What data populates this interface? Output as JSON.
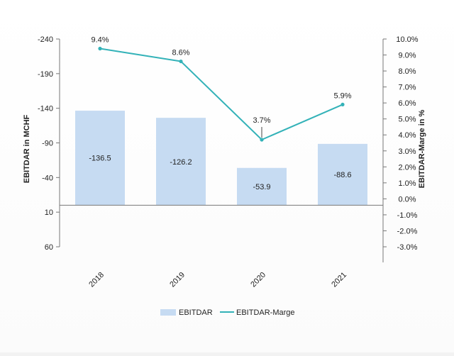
{
  "chart_data": {
    "type": "bar",
    "categories": [
      "2018",
      "2019",
      "2020",
      "2021"
    ],
    "series": [
      {
        "name": "EBITDAR",
        "type": "bar",
        "axis": "left",
        "values": [
          -136.5,
          -126.2,
          -53.9,
          -88.6
        ],
        "value_labels": [
          "-136.5",
          "-126.2",
          "-53.9",
          "-88.6"
        ],
        "color": "#c6dbf2"
      },
      {
        "name": "EBITDAR-Marge",
        "type": "line",
        "axis": "right",
        "values": [
          9.4,
          8.6,
          3.7,
          5.9
        ],
        "value_labels": [
          "9.4%",
          "8.6%",
          "3.7%",
          "5.9%"
        ],
        "color": "#33b2b8"
      }
    ],
    "ylabel": "EBITDAR in MCHF",
    "y2label": "EBITDAR-Marge in %",
    "y_axis": {
      "range": [
        60,
        -240
      ],
      "inverted": true,
      "ticks": [
        -240,
        -190,
        -140,
        -90,
        -40,
        10,
        60
      ],
      "tick_labels": [
        "-240",
        "-190",
        "-140",
        "-90",
        "-40",
        "10",
        "60"
      ]
    },
    "y2_axis": {
      "range": [
        -3,
        10
      ],
      "ticks": [
        10,
        9,
        8,
        7,
        6,
        5,
        4,
        3,
        2,
        1,
        0,
        -1,
        -2,
        -3
      ],
      "tick_labels": [
        "10.0%",
        "9.0%",
        "8.0%",
        "7.0%",
        "6.0%",
        "5.0%",
        "4.0%",
        "3.0%",
        "2.0%",
        "1.0%",
        "0.0%",
        "-1.0%",
        "-2.0%",
        "-3.0%"
      ]
    },
    "grid": false,
    "legend": "bottom",
    "legend_entries": [
      "EBITDAR",
      "EBITDAR-Marge"
    ],
    "colors": {
      "axis": "#777777",
      "text": "#222222"
    }
  }
}
